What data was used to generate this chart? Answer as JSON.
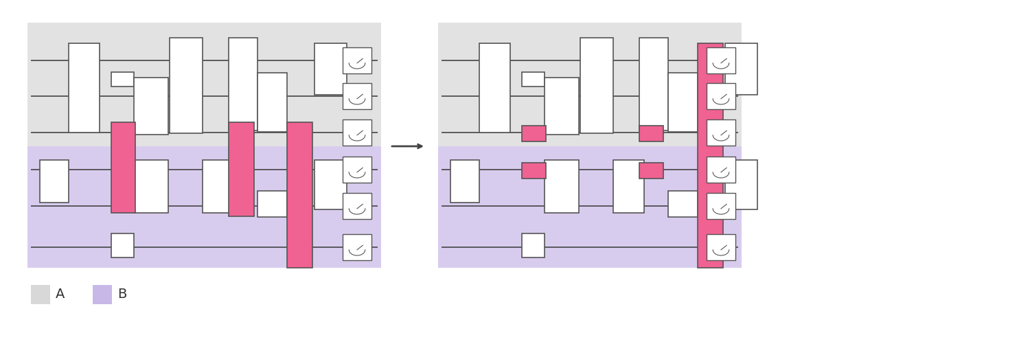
{
  "fig_width": 15.0,
  "fig_height": 5.17,
  "bg_color": "#ffffff",
  "gray_bg": "#e2e2e2",
  "purple_bg": "#d8ccee",
  "white_gate": "#ffffff",
  "pink_gate": "#f06292",
  "gate_edge": "#555555",
  "wire_color": "#444444",
  "legend_gray": "#d8d8d8",
  "legend_purple": "#c8b8e8",
  "arrow_color": "#444444"
}
